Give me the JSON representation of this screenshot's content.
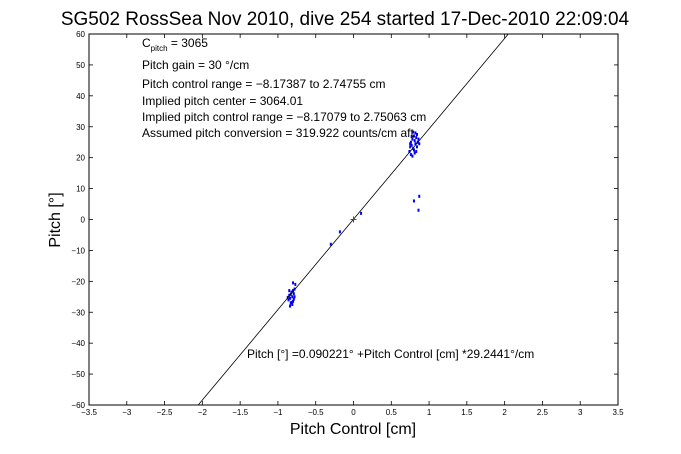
{
  "chart_data": {
    "type": "scatter",
    "title": "SG502 RossSea Nov 2010, dive 254 started 17-Dec-2010 22:09:04",
    "xlabel": "Pitch Control [cm]",
    "ylabel": "Pitch [°]",
    "xlim": [
      -3.5,
      3.5
    ],
    "ylim": [
      -60,
      60
    ],
    "xticks": [
      -3.5,
      -3,
      -2.5,
      -2,
      -1.5,
      -1,
      -0.5,
      0,
      0.5,
      1,
      1.5,
      2,
      2.5,
      3,
      3.5
    ],
    "xtick_labels": [
      "−3.5",
      "−3",
      "−2.5",
      "−2",
      "−1.5",
      "−1",
      "−0.5",
      "0",
      "0.5",
      "1",
      "1.5",
      "2",
      "2.5",
      "3",
      "3.5"
    ],
    "yticks": [
      -60,
      -50,
      -40,
      -30,
      -20,
      -10,
      0,
      10,
      20,
      30,
      40,
      50,
      60
    ],
    "ytick_labels": [
      "−60",
      "−50",
      "−40",
      "−30",
      "−20",
      "−10",
      "0",
      "10",
      "20",
      "30",
      "40",
      "50",
      "60"
    ],
    "grid": false,
    "legend": "none",
    "annotations": {
      "c_pitch_main": "C",
      "c_pitch_sub": "pitch",
      "c_pitch_value": " = 3065",
      "gain": "Pitch gain = 30 °/cm",
      "range": "Pitch control range = −8.17387 to 2.74755 cm",
      "center": "Implied pitch center = 3064.01",
      "implied_range": "Implied pitch control range = −8.17079 to 2.75063 cm",
      "conversion": "Assumed pitch conversion = 319.922 counts/cm aft",
      "fit": "Pitch [°] =0.090221° +Pitch Control [cm] *29.2441°/cm"
    },
    "fit_line": {
      "intercept": 0.090221,
      "slope": 29.2441,
      "color": "#000000"
    },
    "center_marker": {
      "x": 0,
      "y": 0,
      "color": "#ff0000"
    },
    "series": [
      {
        "color": "#0000ff",
        "points": [
          [
            -0.86,
            -26
          ],
          [
            -0.85,
            -24.5
          ],
          [
            -0.84,
            -25.5
          ],
          [
            -0.83,
            -27
          ],
          [
            -0.82,
            -23.5
          ],
          [
            -0.81,
            -25
          ],
          [
            -0.8,
            -26.5
          ],
          [
            -0.79,
            -24
          ],
          [
            -0.78,
            -22.5
          ],
          [
            -0.77,
            -21
          ],
          [
            -0.8,
            -20.5
          ],
          [
            -0.84,
            -28
          ],
          [
            -0.87,
            -25.2
          ],
          [
            -0.83,
            -24.2
          ],
          [
            -0.81,
            -27.5
          ],
          [
            -0.79,
            -25.8
          ],
          [
            -0.82,
            -26.8
          ],
          [
            -0.85,
            -23
          ],
          [
            -0.78,
            -25
          ],
          [
            -0.8,
            -23
          ],
          [
            0.74,
            22
          ],
          [
            0.75,
            23.5
          ],
          [
            0.76,
            25
          ],
          [
            0.77,
            24
          ],
          [
            0.78,
            26
          ],
          [
            0.79,
            23
          ],
          [
            0.8,
            27
          ],
          [
            0.81,
            25.5
          ],
          [
            0.82,
            24.5
          ],
          [
            0.83,
            26.5
          ],
          [
            0.84,
            27.5
          ],
          [
            0.85,
            25
          ],
          [
            0.76,
            21
          ],
          [
            0.78,
            20.5
          ],
          [
            0.8,
            22.5
          ],
          [
            0.82,
            28
          ],
          [
            0.84,
            23.5
          ],
          [
            0.86,
            26
          ],
          [
            0.77,
            26.8
          ],
          [
            0.79,
            28.3
          ],
          [
            0.83,
            22
          ],
          [
            0.81,
            21.5
          ],
          [
            0.87,
            24.5
          ],
          [
            0.75,
            24.5
          ],
          [
            0.8,
            6
          ],
          [
            0.87,
            7.5
          ],
          [
            0.86,
            3
          ],
          [
            -0.3,
            -8
          ],
          [
            -0.18,
            -4
          ],
          [
            0.1,
            2
          ]
        ]
      }
    ]
  }
}
